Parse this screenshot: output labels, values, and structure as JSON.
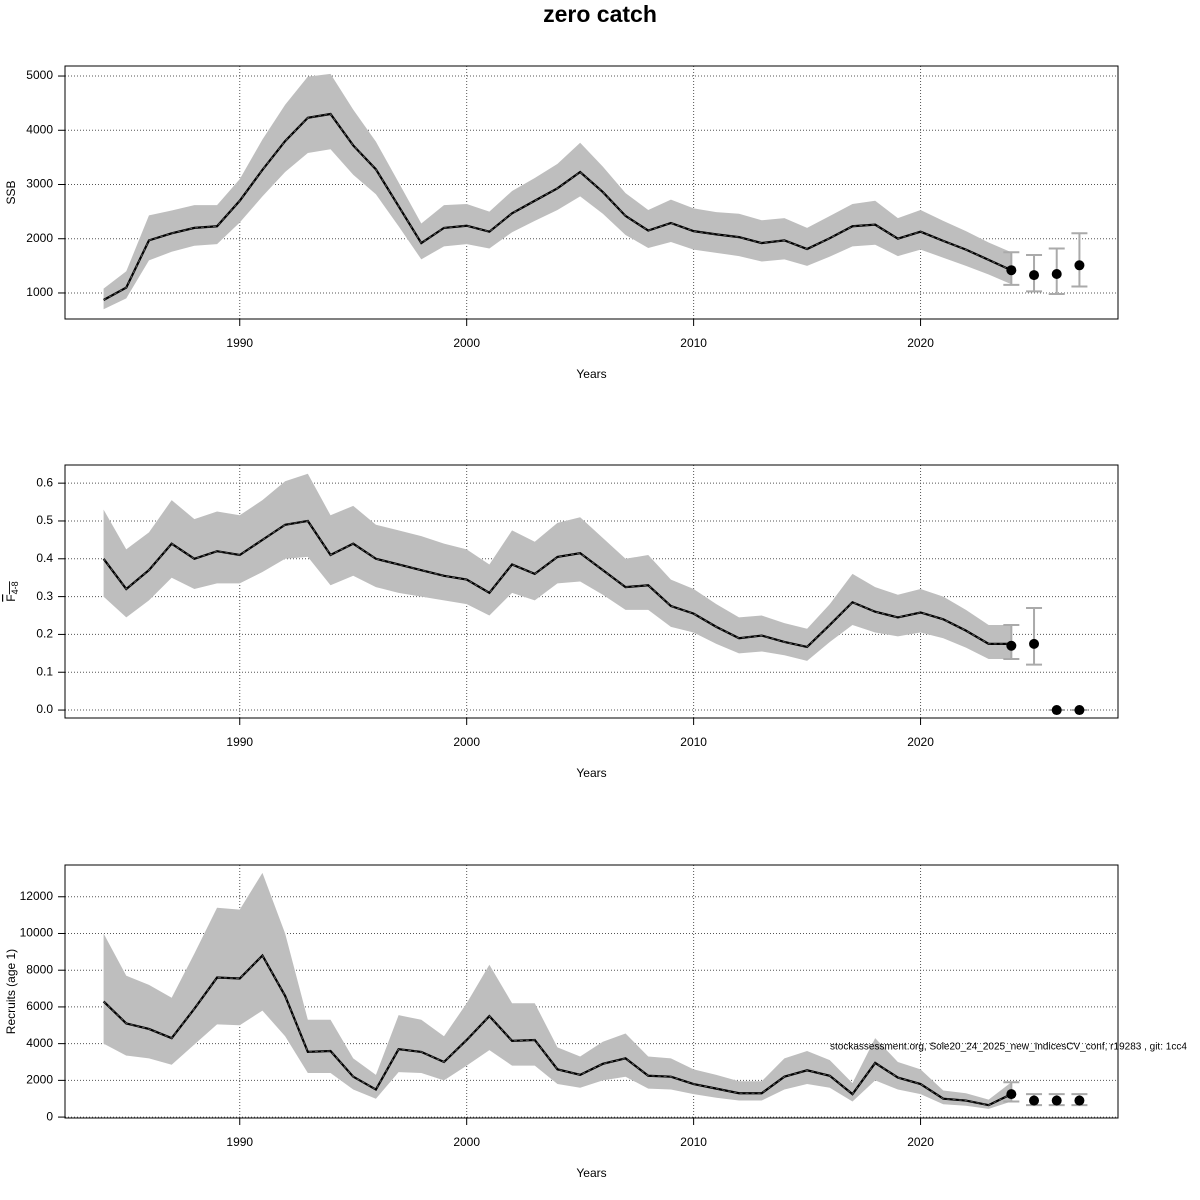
{
  "title": "zero catch",
  "chart_data": [
    {
      "type": "line",
      "xlabel": "Years",
      "ylabel": "SSB",
      "x": [
        1984,
        1985,
        1986,
        1987,
        1988,
        1989,
        1990,
        1991,
        1992,
        1993,
        1994,
        1995,
        1996,
        1997,
        1998,
        1999,
        2000,
        2001,
        2002,
        2003,
        2004,
        2005,
        2006,
        2007,
        2008,
        2009,
        2010,
        2011,
        2012,
        2013,
        2014,
        2015,
        2016,
        2017,
        2018,
        2019,
        2020,
        2021,
        2022,
        2023,
        2024
      ],
      "values": [
        870,
        1100,
        1970,
        2100,
        2200,
        2230,
        2700,
        3270,
        3800,
        4230,
        4300,
        3720,
        3280,
        2600,
        1920,
        2200,
        2240,
        2130,
        2470,
        2700,
        2930,
        3230,
        2860,
        2420,
        2150,
        2290,
        2140,
        2080,
        2030,
        1920,
        1970,
        1810,
        2010,
        2230,
        2260,
        2000,
        2130,
        1960,
        1800,
        1610,
        1420
      ],
      "upper": [
        1080,
        1400,
        2430,
        2520,
        2620,
        2620,
        3100,
        3830,
        4470,
        4990,
        5040,
        4380,
        3790,
        3040,
        2280,
        2620,
        2640,
        2500,
        2880,
        3120,
        3380,
        3770,
        3330,
        2840,
        2530,
        2720,
        2560,
        2490,
        2460,
        2340,
        2380,
        2200,
        2420,
        2640,
        2700,
        2380,
        2530,
        2330,
        2140,
        1930,
        1750
      ],
      "lower": [
        700,
        900,
        1600,
        1760,
        1870,
        1900,
        2300,
        2780,
        3230,
        3580,
        3650,
        3180,
        2820,
        2230,
        1620,
        1860,
        1900,
        1820,
        2120,
        2330,
        2530,
        2780,
        2460,
        2070,
        1830,
        1940,
        1800,
        1740,
        1680,
        1580,
        1620,
        1500,
        1670,
        1860,
        1890,
        1680,
        1800,
        1650,
        1500,
        1340,
        1160
      ],
      "band_color": "#bebebe",
      "color": "#000000",
      "forecast": {
        "x": [
          2024,
          2025,
          2026,
          2027
        ],
        "values": [
          1420,
          1330,
          1350,
          1510
        ],
        "lower": [
          1150,
          1030,
          980,
          1120
        ],
        "upper": [
          1750,
          1700,
          1820,
          2100
        ],
        "color": "#aaaaaa"
      },
      "xlim": [
        1982.3,
        2028.7
      ],
      "xticks": [
        1990,
        2000,
        2010,
        2020
      ],
      "ylim": [
        520,
        5185
      ],
      "yticks": [
        1000,
        2000,
        3000,
        4000,
        5000
      ],
      "grid": true
    },
    {
      "type": "line",
      "xlabel": "Years",
      "ylabel": "F",
      "ylabel_sub": "4-8",
      "x": [
        1984,
        1985,
        1986,
        1987,
        1988,
        1989,
        1990,
        1991,
        1992,
        1993,
        1994,
        1995,
        1996,
        1997,
        1998,
        1999,
        2000,
        2001,
        2002,
        2003,
        2004,
        2005,
        2006,
        2007,
        2008,
        2009,
        2010,
        2011,
        2012,
        2013,
        2014,
        2015,
        2016,
        2017,
        2018,
        2019,
        2020,
        2021,
        2022,
        2023,
        2024
      ],
      "values": [
        0.4,
        0.32,
        0.37,
        0.44,
        0.4,
        0.42,
        0.41,
        0.45,
        0.49,
        0.5,
        0.41,
        0.44,
        0.4,
        0.385,
        0.37,
        0.355,
        0.345,
        0.31,
        0.385,
        0.36,
        0.405,
        0.415,
        0.37,
        0.325,
        0.33,
        0.275,
        0.255,
        0.22,
        0.19,
        0.197,
        0.18,
        0.167,
        0.225,
        0.285,
        0.26,
        0.245,
        0.258,
        0.24,
        0.21,
        0.175,
        0.175
      ],
      "upper": [
        0.53,
        0.425,
        0.47,
        0.555,
        0.505,
        0.525,
        0.515,
        0.555,
        0.605,
        0.625,
        0.515,
        0.54,
        0.49,
        0.475,
        0.46,
        0.44,
        0.425,
        0.385,
        0.475,
        0.445,
        0.495,
        0.51,
        0.455,
        0.4,
        0.41,
        0.345,
        0.32,
        0.28,
        0.245,
        0.25,
        0.23,
        0.215,
        0.28,
        0.36,
        0.325,
        0.305,
        0.32,
        0.3,
        0.265,
        0.225,
        0.225
      ],
      "lower": [
        0.3,
        0.245,
        0.29,
        0.35,
        0.32,
        0.335,
        0.335,
        0.365,
        0.4,
        0.405,
        0.33,
        0.355,
        0.325,
        0.31,
        0.3,
        0.29,
        0.28,
        0.25,
        0.31,
        0.29,
        0.335,
        0.34,
        0.305,
        0.265,
        0.265,
        0.22,
        0.205,
        0.175,
        0.15,
        0.155,
        0.145,
        0.13,
        0.18,
        0.225,
        0.205,
        0.195,
        0.205,
        0.19,
        0.165,
        0.135,
        0.135
      ],
      "band_color": "#bebebe",
      "color": "#000000",
      "forecast": {
        "x": [
          2024,
          2025,
          2026,
          2027
        ],
        "values": [
          0.17,
          0.175,
          0,
          0
        ],
        "lower": [
          0.135,
          0.12,
          0,
          0
        ],
        "upper": [
          0.225,
          0.27,
          0,
          0
        ],
        "color": "#aaaaaa"
      },
      "xlim": [
        1982.3,
        2028.7
      ],
      "xticks": [
        1990,
        2000,
        2010,
        2020
      ],
      "ylim": [
        -0.021,
        0.648
      ],
      "yticks": [
        {
          "value": 0,
          "label": "0.0"
        },
        0.1,
        0.2,
        0.3,
        0.4,
        0.5,
        0.6
      ],
      "grid": true
    },
    {
      "type": "line",
      "xlabel": "Years",
      "ylabel": "Recruits (age 1)",
      "annotation": "stockassessment.org, Sole20_24_2025_new_IndicesCV_conf, r19283 , git: 1cc4",
      "x": [
        1984,
        1985,
        1986,
        1987,
        1988,
        1989,
        1990,
        1991,
        1992,
        1993,
        1994,
        1995,
        1996,
        1997,
        1998,
        1999,
        2000,
        2001,
        2002,
        2003,
        2004,
        2005,
        2006,
        2007,
        2008,
        2009,
        2010,
        2011,
        2012,
        2013,
        2014,
        2015,
        2016,
        2017,
        2018,
        2019,
        2020,
        2021,
        2022,
        2023,
        2024
      ],
      "values": [
        6300,
        5100,
        4800,
        4300,
        5900,
        7600,
        7550,
        8800,
        6600,
        3550,
        3600,
        2200,
        1500,
        3700,
        3550,
        3000,
        4200,
        5500,
        4150,
        4200,
        2600,
        2300,
        2900,
        3200,
        2250,
        2200,
        1800,
        1550,
        1300,
        1300,
        2200,
        2550,
        2250,
        1250,
        2950,
        2150,
        1800,
        1000,
        900,
        650,
        1250
      ],
      "upper": [
        10000,
        7700,
        7200,
        6500,
        8900,
        11400,
        11300,
        13300,
        10000,
        5300,
        5300,
        3200,
        2300,
        5550,
        5300,
        4400,
        6200,
        8300,
        6200,
        6200,
        3800,
        3300,
        4100,
        4550,
        3300,
        3200,
        2600,
        2300,
        1950,
        1950,
        3200,
        3600,
        3100,
        1850,
        4300,
        3000,
        2600,
        1450,
        1300,
        950,
        1900
      ],
      "lower": [
        4000,
        3350,
        3200,
        2850,
        3950,
        5050,
        5000,
        5800,
        4400,
        2400,
        2400,
        1500,
        1000,
        2450,
        2400,
        2000,
        2800,
        3650,
        2800,
        2800,
        1800,
        1600,
        2000,
        2200,
        1550,
        1500,
        1250,
        1050,
        900,
        900,
        1500,
        1800,
        1600,
        850,
        2000,
        1500,
        1250,
        700,
        620,
        450,
        850
      ],
      "band_color": "#bebebe",
      "color": "#000000",
      "forecast": {
        "x": [
          2024,
          2025,
          2026,
          2027
        ],
        "values": [
          1250,
          900,
          900,
          900
        ],
        "lower": [
          850,
          650,
          650,
          650
        ],
        "upper": [
          1900,
          1250,
          1250,
          1250
        ],
        "color": "#aaaaaa"
      },
      "xlim": [
        1982.3,
        2028.7
      ],
      "xticks": [
        1990,
        2000,
        2010,
        2020
      ],
      "ylim": [
        -50,
        13730
      ],
      "yticks": [
        0,
        2000,
        4000,
        6000,
        8000,
        10000,
        12000
      ],
      "grid": true
    }
  ]
}
